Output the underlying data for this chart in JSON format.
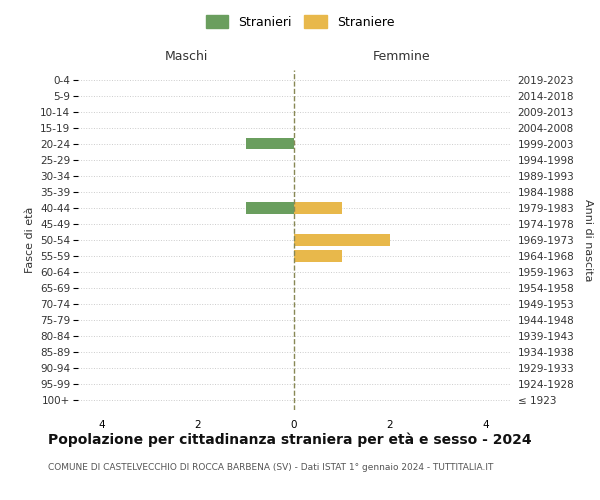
{
  "age_groups": [
    "100+",
    "95-99",
    "90-94",
    "85-89",
    "80-84",
    "75-79",
    "70-74",
    "65-69",
    "60-64",
    "55-59",
    "50-54",
    "45-49",
    "40-44",
    "35-39",
    "30-34",
    "25-29",
    "20-24",
    "15-19",
    "10-14",
    "5-9",
    "0-4"
  ],
  "birth_years": [
    "≤ 1923",
    "1924-1928",
    "1929-1933",
    "1934-1938",
    "1939-1943",
    "1944-1948",
    "1949-1953",
    "1954-1958",
    "1959-1963",
    "1964-1968",
    "1969-1973",
    "1974-1978",
    "1979-1983",
    "1984-1988",
    "1989-1993",
    "1994-1998",
    "1999-2003",
    "2004-2008",
    "2009-2013",
    "2014-2018",
    "2019-2023"
  ],
  "males": [
    0,
    0,
    0,
    0,
    0,
    0,
    0,
    0,
    0,
    0,
    0,
    0,
    1,
    0,
    0,
    0,
    1,
    0,
    0,
    0,
    0
  ],
  "females": [
    0,
    0,
    0,
    0,
    0,
    0,
    0,
    0,
    0,
    1,
    2,
    0,
    1,
    0,
    0,
    0,
    0,
    0,
    0,
    0,
    0
  ],
  "male_color": "#6a9e5e",
  "female_color": "#e8b84b",
  "title": "Popolazione per cittadinanza straniera per età e sesso - 2024",
  "subtitle": "COMUNE DI CASTELVECCHIO DI ROCCA BARBENA (SV) - Dati ISTAT 1° gennaio 2024 - TUTTITALIA.IT",
  "legend_male": "Stranieri",
  "legend_female": "Straniere",
  "xlabel_left": "Maschi",
  "xlabel_right": "Femmine",
  "ylabel_left": "Fasce di età",
  "ylabel_right": "Anni di nascita",
  "xlim": 4.5,
  "background_color": "#ffffff",
  "grid_color": "#cccccc",
  "bar_height": 0.7,
  "title_fontsize": 10,
  "subtitle_fontsize": 6.5,
  "tick_fontsize": 7.5,
  "label_fontsize": 9,
  "legend_fontsize": 9
}
